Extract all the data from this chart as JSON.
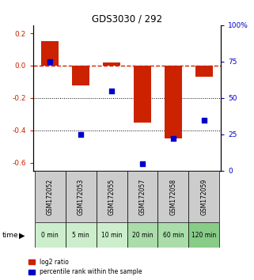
{
  "title": "GDS3030 / 292",
  "samples": [
    "GSM172052",
    "GSM172053",
    "GSM172055",
    "GSM172057",
    "GSM172058",
    "GSM172059"
  ],
  "time_labels": [
    "0 min",
    "5 min",
    "10 min",
    "20 min",
    "60 min",
    "120 min"
  ],
  "log2_ratio": [
    0.15,
    -0.12,
    0.02,
    -0.35,
    -0.45,
    -0.07
  ],
  "percentile_rank": [
    75,
    25,
    55,
    5,
    22,
    35
  ],
  "bar_color": "#cc2200",
  "dot_color": "#0000cc",
  "ylim_left": [
    -0.65,
    0.25
  ],
  "ylim_right": [
    0,
    100
  ],
  "yticks_left": [
    0.2,
    0.0,
    -0.2,
    -0.4,
    -0.6
  ],
  "yticks_right": [
    100,
    75,
    50,
    25,
    0
  ],
  "hline_color": "#cc2200",
  "dotted_line_color": "black",
  "bg_color": "#ffffff",
  "sample_box_color": "#cccccc",
  "time_box_colors": [
    "#cceecc",
    "#cceecc",
    "#cceecc",
    "#aaddaa",
    "#aaddaa",
    "#88cc88"
  ],
  "legend_log2": "log2 ratio",
  "legend_pct": "percentile rank within the sample",
  "bar_width": 0.55
}
